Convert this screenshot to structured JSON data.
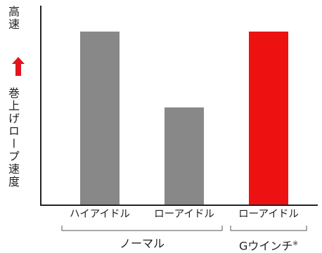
{
  "chart_data": {
    "type": "bar",
    "title": "",
    "xlabel": "",
    "ylabel": "",
    "y_axis_text": {
      "high": "高速",
      "label": "巻上げロープ速度"
    },
    "y_axis_arrow": "up",
    "ylim": [
      0,
      100
    ],
    "categories": [
      "ハイアイドル",
      "ローアイドル",
      "ローアイドル"
    ],
    "values": [
      87,
      49,
      87
    ],
    "bar_colors": [
      "#888888",
      "#888888",
      "#ee1111"
    ],
    "groups": [
      {
        "label": "ノーマル",
        "members": [
          0,
          1
        ]
      },
      {
        "label": "Gウインチ",
        "note": "※",
        "members": [
          2
        ]
      }
    ],
    "grid": false,
    "tick_marks": false
  },
  "colors": {
    "normal_bar": "#888888",
    "g_winch_bar": "#ee1111",
    "arrow": "#e3161d",
    "axis": "#222222"
  }
}
